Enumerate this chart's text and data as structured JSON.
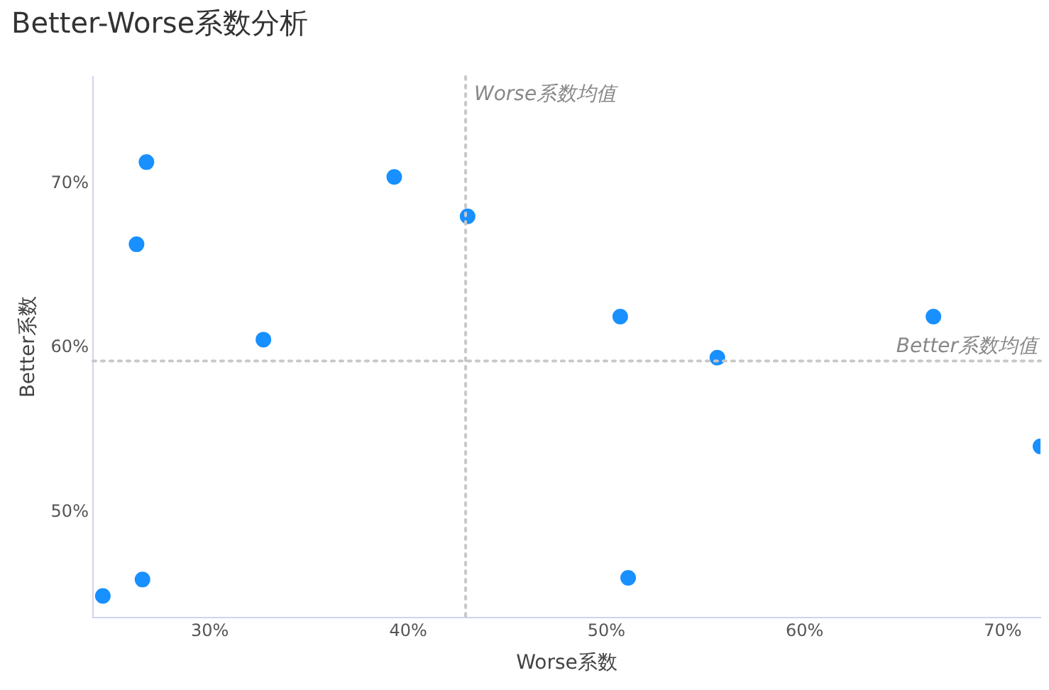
{
  "chart_data": {
    "type": "scatter",
    "title": "Better-Worse系数分析",
    "xlabel": "Worse系数",
    "ylabel": "Better系数",
    "x": [
      24.6,
      26.6,
      26.8,
      26.3,
      32.7,
      39.3,
      43.0,
      50.7,
      51.1,
      55.6,
      66.5,
      71.9
    ],
    "series": [
      {
        "color": "#1890ff",
        "values": [
          44.9,
          45.9,
          71.3,
          66.3,
          60.5,
          70.4,
          68.0,
          61.9,
          46.0,
          59.4,
          61.9,
          54.0
        ]
      }
    ],
    "xlim": [
      24.1,
      71.9
    ],
    "ylim": [
      43.6,
      76.5
    ],
    "xticks": [
      {
        "value": 30,
        "label": "30%"
      },
      {
        "value": 40,
        "label": "40%"
      },
      {
        "value": 50,
        "label": "50%"
      },
      {
        "value": 60,
        "label": "60%"
      },
      {
        "value": 70,
        "label": "70%"
      }
    ],
    "yticks": [
      {
        "value": 50,
        "label": "50%"
      },
      {
        "value": 60,
        "label": "60%"
      },
      {
        "value": 70,
        "label": "70%"
      }
    ],
    "ref_lines": [
      {
        "axis": "x",
        "value": 42.9,
        "label": "Worse系数均值",
        "color": "#c8c8c8",
        "line_style": "dotted"
      },
      {
        "axis": "y",
        "value": 59.2,
        "label": "Better系数均值",
        "color": "#c8c8c8",
        "line_style": "dotted"
      }
    ],
    "grid": false,
    "legend": false,
    "marker": "circle"
  }
}
